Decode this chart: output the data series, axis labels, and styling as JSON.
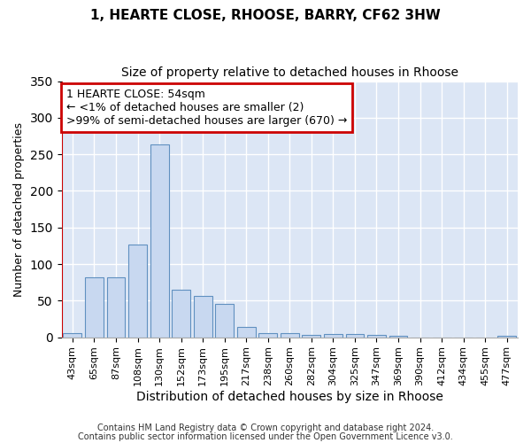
{
  "title": "1, HEARTE CLOSE, RHOOSE, BARRY, CF62 3HW",
  "subtitle": "Size of property relative to detached houses in Rhoose",
  "xlabel": "Distribution of detached houses by size in Rhoose",
  "ylabel": "Number of detached properties",
  "bar_color": "#c8d8f0",
  "bar_edge_color": "#6090c0",
  "background_color": "#dce6f5",
  "grid_color": "#ffffff",
  "fig_background": "#ffffff",
  "bins": [
    "43sqm",
    "65sqm",
    "87sqm",
    "108sqm",
    "130sqm",
    "152sqm",
    "173sqm",
    "195sqm",
    "217sqm",
    "238sqm",
    "260sqm",
    "282sqm",
    "304sqm",
    "325sqm",
    "347sqm",
    "369sqm",
    "390sqm",
    "412sqm",
    "434sqm",
    "455sqm",
    "477sqm"
  ],
  "values": [
    5,
    82,
    82,
    127,
    263,
    65,
    57,
    45,
    14,
    6,
    6,
    3,
    4,
    4,
    3,
    2,
    0,
    0,
    0,
    0,
    2
  ],
  "ylim": [
    0,
    350
  ],
  "yticks": [
    0,
    50,
    100,
    150,
    200,
    250,
    300,
    350
  ],
  "annotation_line1": "1 HEARTE CLOSE: 54sqm",
  "annotation_line2": "← <1% of detached houses are smaller (2)",
  "annotation_line3": ">99% of semi-detached houses are larger (670) →",
  "annotation_box_color": "#ffffff",
  "annotation_border_color": "#cc0000",
  "redline_color": "#cc0000",
  "footnote_line1": "Contains HM Land Registry data © Crown copyright and database right 2024.",
  "footnote_line2": "Contains public sector information licensed under the Open Government Licence v3.0.",
  "title_fontsize": 11,
  "subtitle_fontsize": 10,
  "ylabel_fontsize": 9,
  "xlabel_fontsize": 10,
  "tick_fontsize": 8,
  "annot_fontsize": 9,
  "footnote_fontsize": 7
}
